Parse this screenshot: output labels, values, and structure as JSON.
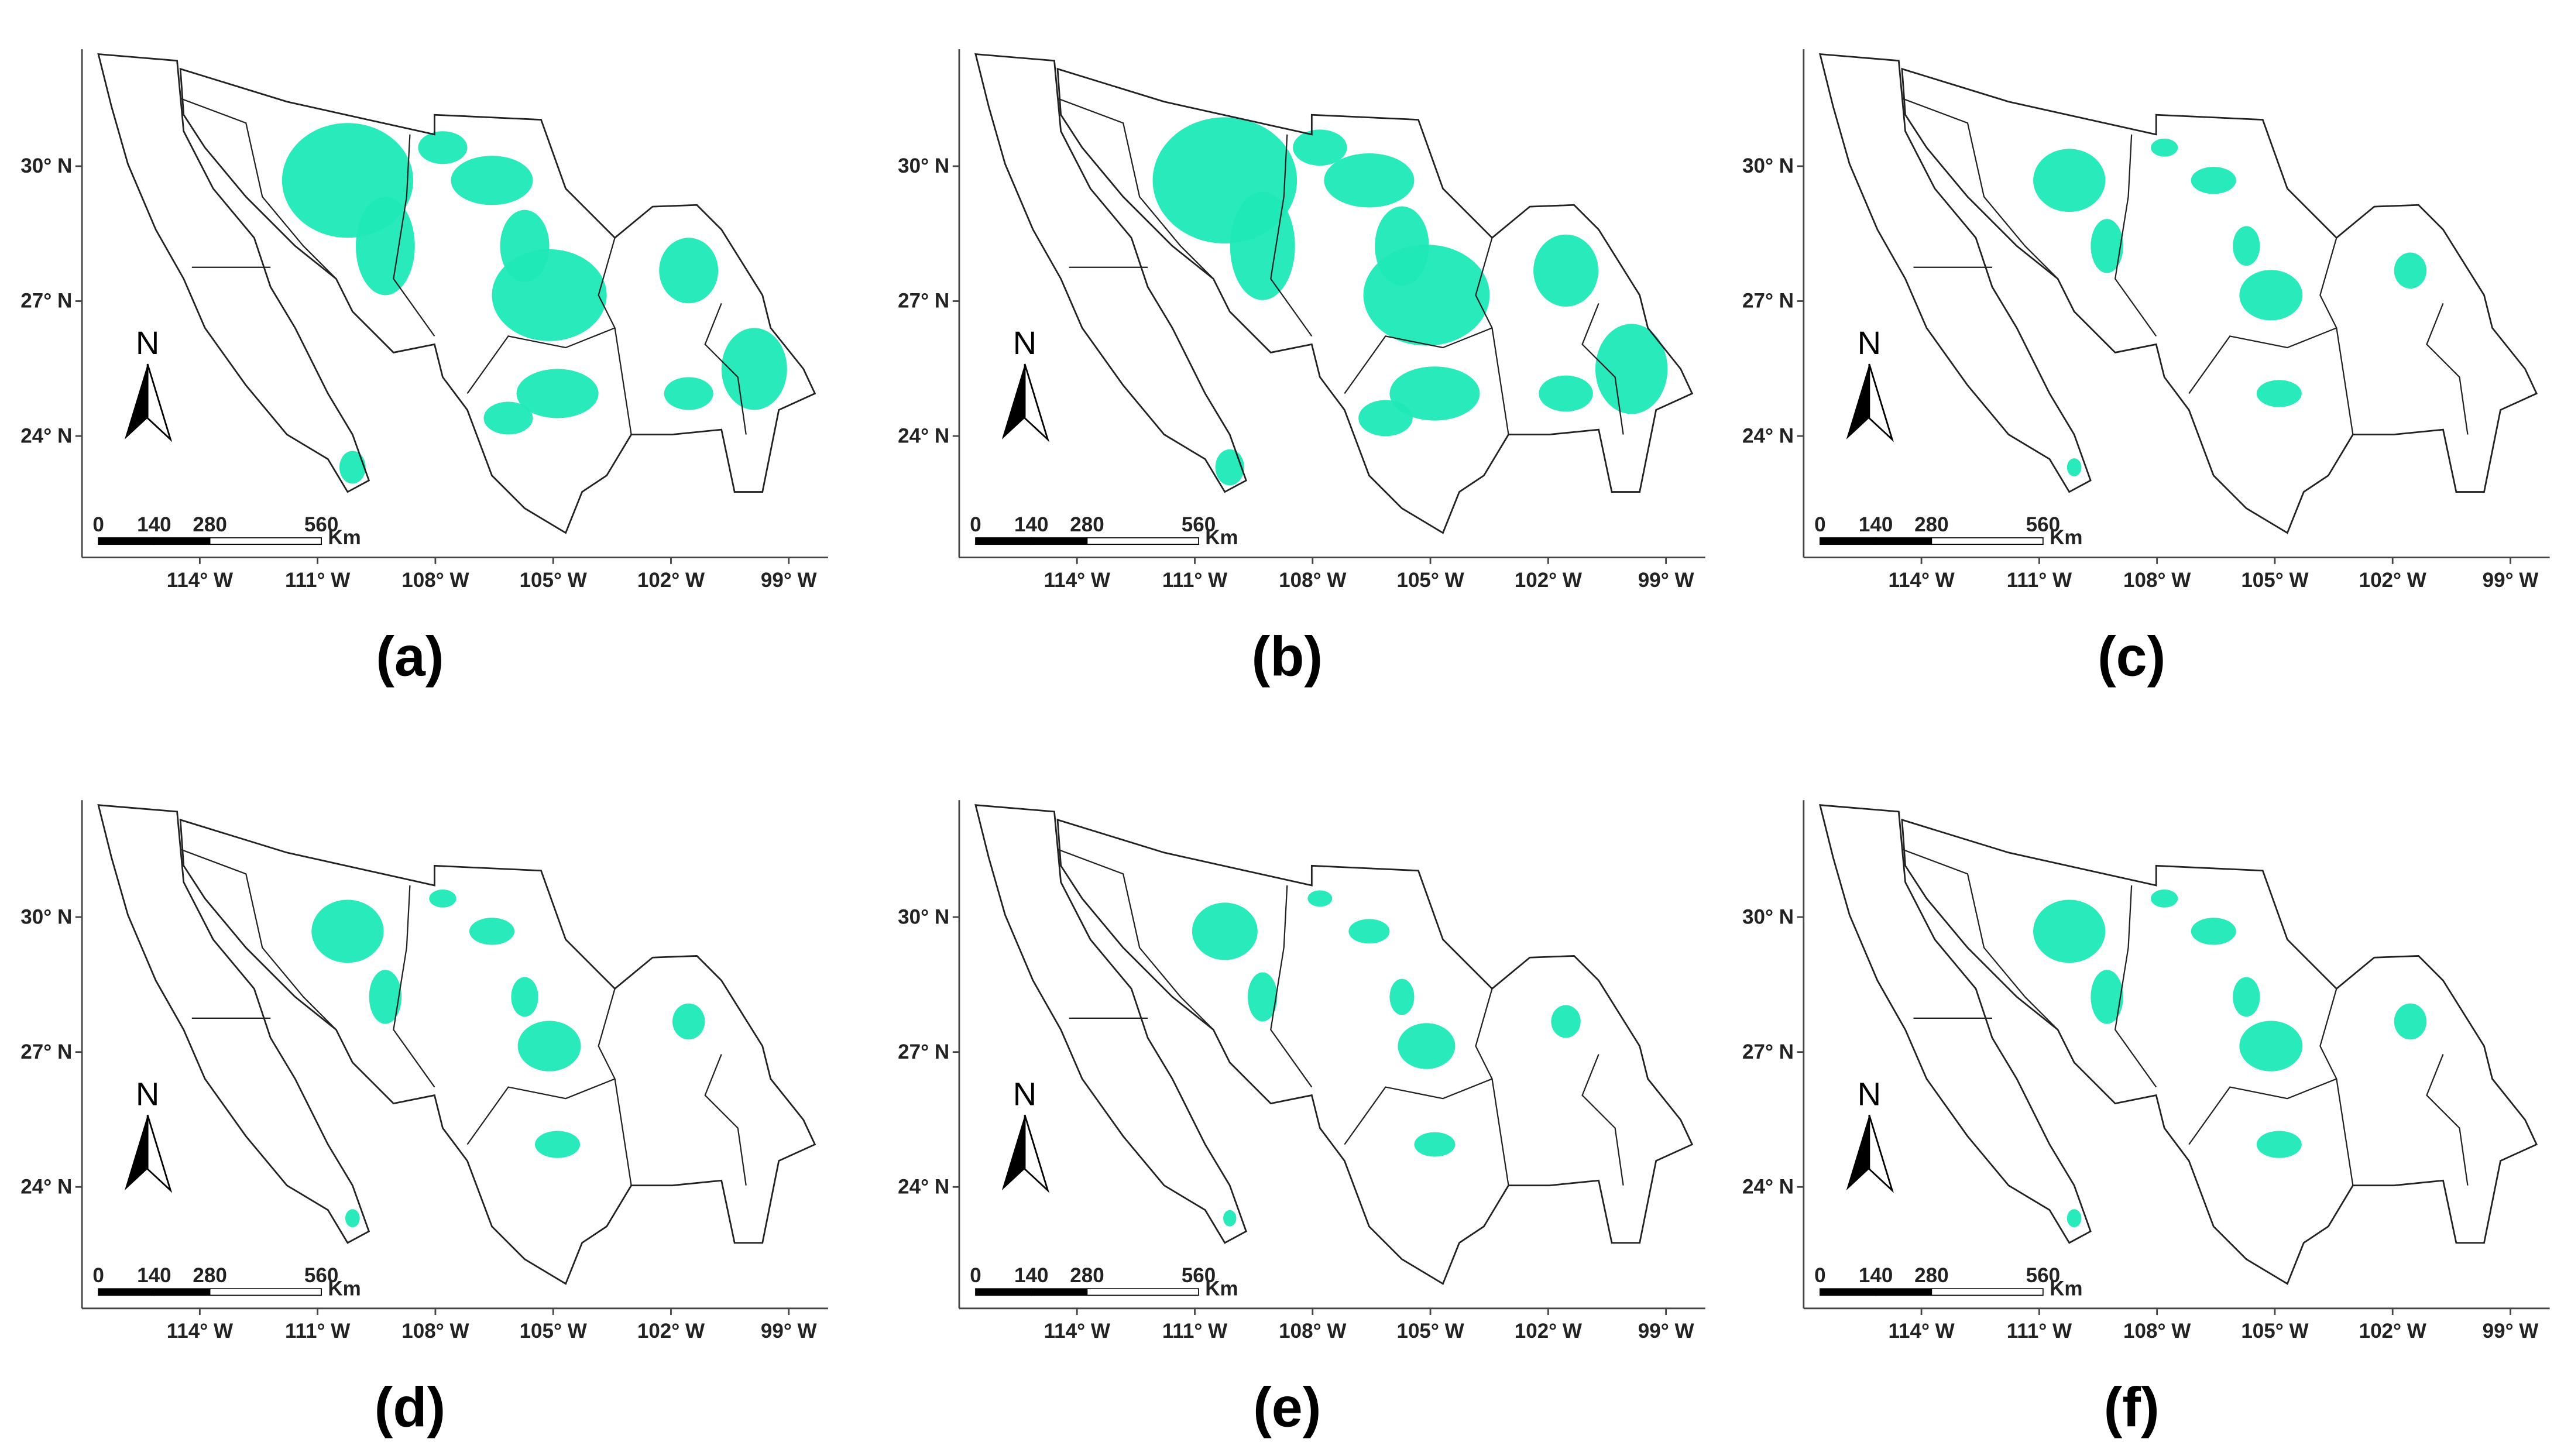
{
  "panels": [
    {
      "label": "(a)"
    },
    {
      "label": "(b)"
    },
    {
      "label": "(c)"
    },
    {
      "label": "(d)"
    },
    {
      "label": "(e)"
    },
    {
      "label": "(f)"
    }
  ],
  "axes": {
    "xlim": [
      -117,
      -98
    ],
    "ylim": [
      21.3,
      32.6
    ],
    "xticks": [
      {
        "value": -114,
        "label": "114° W"
      },
      {
        "value": -111,
        "label": "111° W"
      },
      {
        "value": -108,
        "label": "108° W"
      },
      {
        "value": -105,
        "label": "105° W"
      },
      {
        "value": -102,
        "label": "102° W"
      },
      {
        "value": -99,
        "label": "99° W"
      }
    ],
    "yticks": [
      {
        "value": 30,
        "label": "30° N"
      },
      {
        "value": 27,
        "label": "27° N"
      },
      {
        "value": 24,
        "label": "24° N"
      }
    ]
  },
  "scale_bar": {
    "ticks": [
      0,
      140,
      280,
      560
    ],
    "unit": "Km"
  },
  "north_label": "N"
}
